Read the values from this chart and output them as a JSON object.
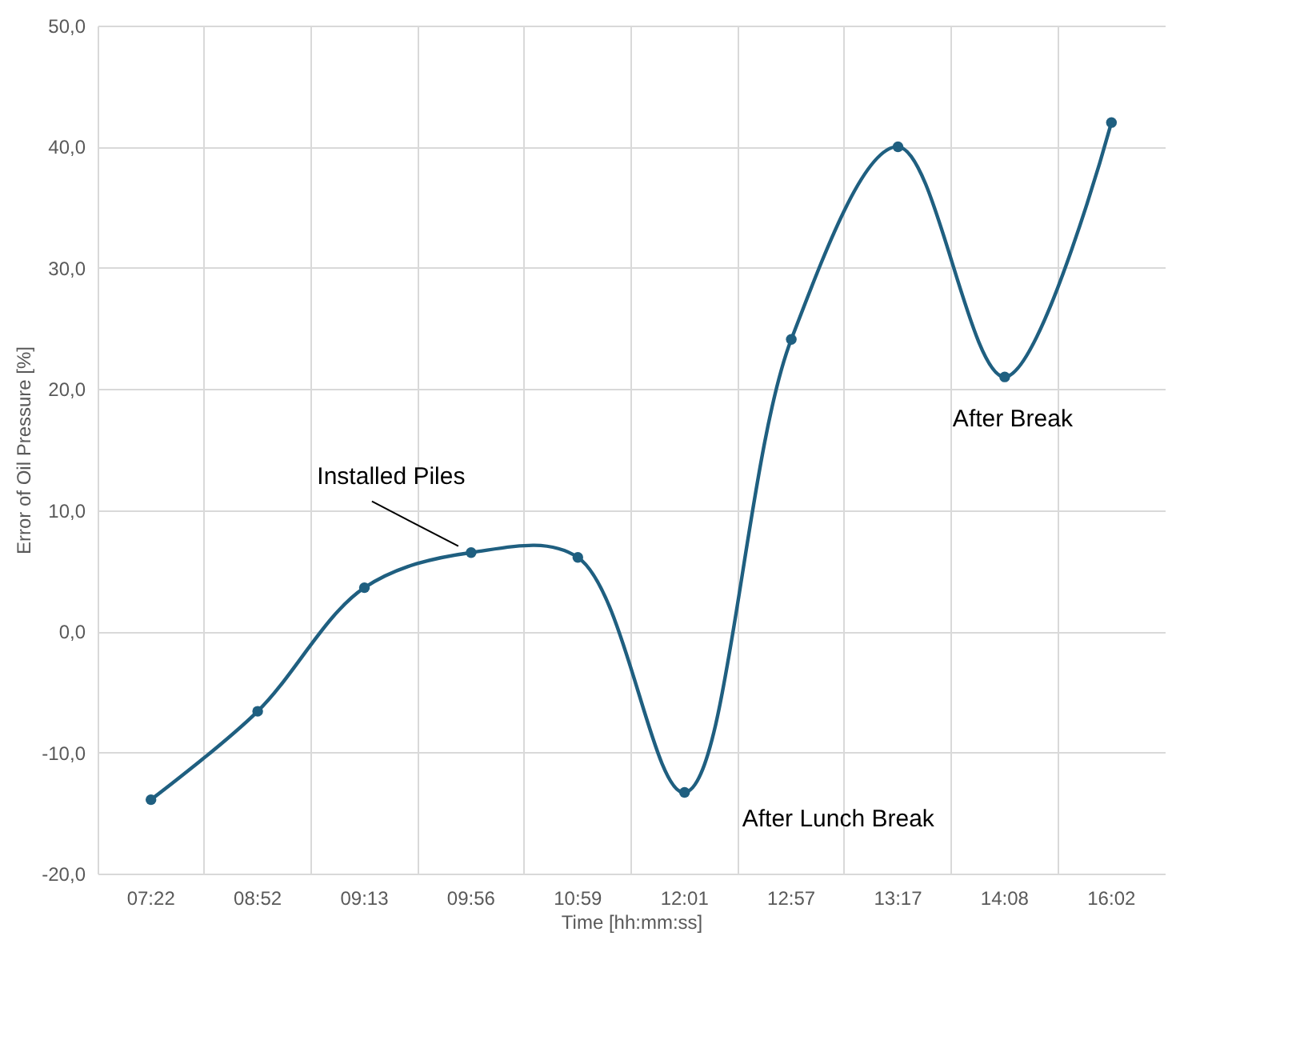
{
  "chart_data": {
    "type": "line",
    "xlabel": "Time [hh:mm:ss]",
    "ylabel": "Error of Oil Pressure [%]",
    "categories": [
      "07:22",
      "08:52",
      "09:13",
      "09:56",
      "10:59",
      "12:01",
      "12:57",
      "13:17",
      "14:08",
      "16:02"
    ],
    "series": [
      {
        "color": "#1f5f80",
        "values": [
          -13.9,
          -6.6,
          3.6,
          6.5,
          6.1,
          -13.3,
          24.1,
          40.0,
          21.0,
          42.0
        ]
      }
    ],
    "ylim": [
      -20,
      50
    ],
    "yticks": [
      {
        "value": -20,
        "label": "-20,0"
      },
      {
        "value": -10,
        "label": "-10,0"
      },
      {
        "value": 0,
        "label": "0,0"
      },
      {
        "value": 10,
        "label": "10,0"
      },
      {
        "value": 20,
        "label": "20,0"
      },
      {
        "value": 30,
        "label": "30,0"
      },
      {
        "value": 40,
        "label": "40,0"
      },
      {
        "value": 50,
        "label": "50,0"
      }
    ],
    "annotations": [
      {
        "text": "Installed Piles",
        "x": "09:56",
        "y": 6.5
      },
      {
        "text": "After Lunch Break",
        "x": "12:01",
        "y": -13.3
      },
      {
        "text": "After Break",
        "x": "14:08",
        "y": 21.0
      }
    ],
    "grid": true,
    "marker": "circle"
  }
}
